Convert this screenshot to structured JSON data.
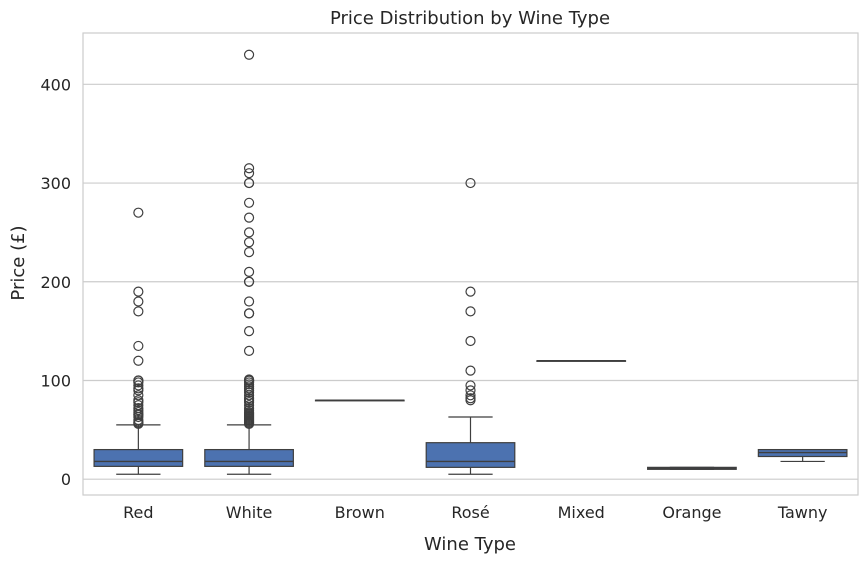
{
  "chart_data": {
    "type": "box",
    "title": "Price Distribution by Wine Type",
    "xlabel": "Wine Type",
    "ylabel": "Price (£)",
    "ylim": [
      -16,
      452
    ],
    "yticks": [
      0,
      100,
      200,
      300,
      400
    ],
    "grid": "horizontal",
    "color": "#4c72b0",
    "categories": [
      "Red",
      "White",
      "Brown",
      "Rosé",
      "Mixed",
      "Orange",
      "Tawny"
    ],
    "boxes": [
      {
        "category": "Red",
        "min": 5,
        "q1": 13,
        "median": 18,
        "q3": 30,
        "max": 55,
        "outliers": [
          270,
          190,
          180,
          170,
          135,
          120,
          100,
          100,
          98,
          95,
          92,
          90,
          85,
          80,
          78,
          75,
          72,
          70,
          68,
          66,
          65,
          63,
          60,
          58,
          57,
          56
        ]
      },
      {
        "category": "White",
        "min": 5,
        "q1": 13,
        "median": 18,
        "q3": 30,
        "max": 55,
        "outliers": [
          430,
          315,
          310,
          300,
          300,
          280,
          265,
          250,
          240,
          230,
          210,
          200,
          200,
          180,
          168,
          168,
          150,
          130,
          101,
          100,
          100,
          98,
          96,
          94,
          92,
          90,
          88,
          85,
          82,
          80,
          78,
          75,
          72,
          70,
          68,
          67,
          66,
          65,
          64,
          63,
          62,
          61,
          60,
          59,
          58,
          57,
          56
        ]
      },
      {
        "category": "Brown",
        "min": 80,
        "q1": 80,
        "median": 80,
        "q3": 80,
        "max": 80,
        "outliers": []
      },
      {
        "category": "Rosé",
        "min": 5,
        "q1": 12,
        "median": 18,
        "q3": 37,
        "max": 63,
        "outliers": [
          300,
          190,
          170,
          140,
          110,
          95,
          90,
          85,
          82,
          80
        ]
      },
      {
        "category": "Mixed",
        "min": 120,
        "q1": 120,
        "median": 120,
        "q3": 120,
        "max": 120,
        "outliers": []
      },
      {
        "category": "Orange",
        "min": 10,
        "q1": 10,
        "median": 11,
        "q3": 12,
        "max": 12,
        "outliers": []
      },
      {
        "category": "Tawny",
        "min": 18,
        "q1": 23,
        "median": 27,
        "q3": 30,
        "max": 30,
        "outliers": []
      }
    ]
  }
}
